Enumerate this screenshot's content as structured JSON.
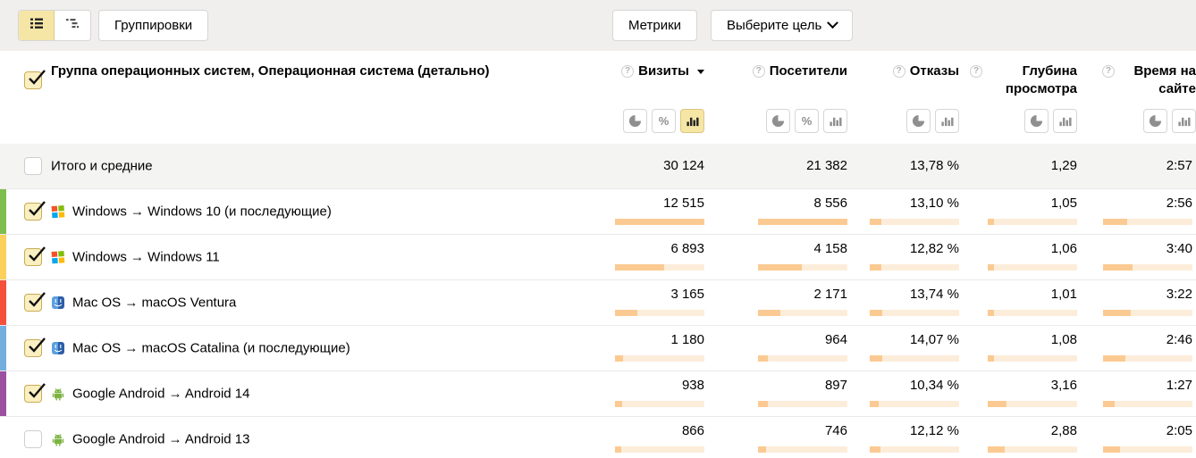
{
  "toolbar": {
    "groupings_button": "Группировки",
    "metrics_button": "Метрики",
    "goal_button": "Выберите цель"
  },
  "header": {
    "group_title": "Группа операционных систем, Операционная система (детально)",
    "help_glyph": "?",
    "percent_glyph": "%",
    "columns": [
      {
        "label": "Визиты",
        "sorted": "desc",
        "toggles": [
          "pie",
          "percent",
          "bars"
        ],
        "active_toggle": "bars"
      },
      {
        "label": "Посетители",
        "toggles": [
          "pie",
          "percent",
          "bars"
        ],
        "active_toggle": null
      },
      {
        "label": "Отказы",
        "toggles": [
          "pie",
          "bars"
        ],
        "active_toggle": null
      },
      {
        "label": "Глубина просмотра",
        "toggles": [
          "pie",
          "bars"
        ],
        "active_toggle": null
      },
      {
        "label": "Время на сайте",
        "toggles": [
          "pie",
          "bars"
        ],
        "active_toggle": null
      }
    ]
  },
  "totals": {
    "label": "Итого и средние",
    "checked": false,
    "values": [
      "30 124",
      "21 382",
      "13,78 %",
      "1,29",
      "2:57"
    ]
  },
  "rows": [
    {
      "label": "Windows → Windows 10 (и последующие)",
      "os": "windows",
      "checked": true,
      "strip": "#7dbe4f",
      "values": [
        "12 515",
        "8 556",
        "13,10 %",
        "1,05",
        "2:56"
      ],
      "bars": [
        100,
        100,
        13.1,
        7.0,
        26.7
      ]
    },
    {
      "label": "Windows → Windows 11",
      "os": "windows",
      "checked": true,
      "strip": "#fbd15b",
      "values": [
        "6 893",
        "4 158",
        "12,82 %",
        "1,06",
        "3:40"
      ],
      "bars": [
        55.1,
        48.6,
        12.8,
        7.1,
        33.3
      ]
    },
    {
      "label": "Mac OS → macOS Ventura",
      "os": "mac",
      "checked": true,
      "strip": "#f4503c",
      "values": [
        "3 165",
        "2 171",
        "13,74 %",
        "1,01",
        "3:22"
      ],
      "bars": [
        25.3,
        25.4,
        13.7,
        6.7,
        30.6
      ]
    },
    {
      "label": "Mac OS → macOS Catalina (и последующие)",
      "os": "mac",
      "checked": true,
      "strip": "#74aedf",
      "values": [
        "1 180",
        "964",
        "14,07 %",
        "1,08",
        "2:46"
      ],
      "bars": [
        9.4,
        11.3,
        14.1,
        7.2,
        25.2
      ]
    },
    {
      "label": "Google Android → Android 14",
      "os": "android",
      "checked": true,
      "strip": "#9c50a0",
      "values": [
        "938",
        "897",
        "10,34 %",
        "3,16",
        "1:27"
      ],
      "bars": [
        7.5,
        10.5,
        10.3,
        21.1,
        13.2
      ]
    },
    {
      "label": "Google Android → Android 13",
      "os": "android",
      "checked": false,
      "strip": null,
      "values": [
        "866",
        "746",
        "12,12 %",
        "2,88",
        "2:05"
      ],
      "bars": [
        6.9,
        8.7,
        12.1,
        19.2,
        18.9
      ]
    }
  ],
  "colors": {
    "accent_yellow": "#f6e6a6",
    "bar_fill": "#fbca92",
    "bar_track": "#fcedda",
    "toolbar_bg": "#f0efed",
    "totals_bg": "#f4f4f2"
  }
}
